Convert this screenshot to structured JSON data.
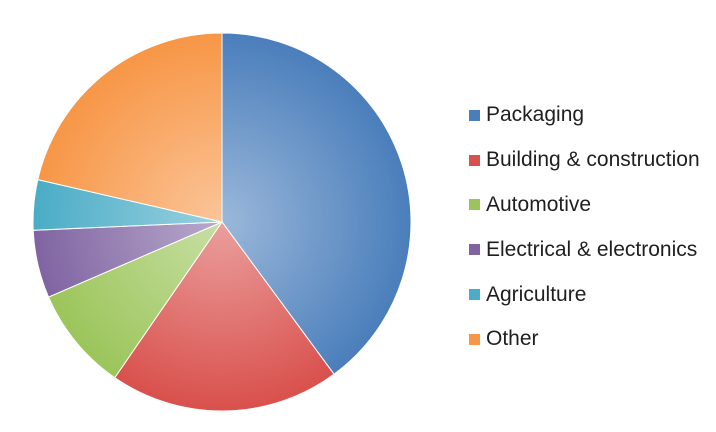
{
  "chart_data": {
    "type": "pie",
    "title": "",
    "categories": [
      "Packaging",
      "Building & construction",
      "Automotive",
      "Electrical & electronics",
      "Agriculture",
      "Other"
    ],
    "values": [
      39.9,
      19.7,
      8.9,
      5.8,
      4.3,
      21.4
    ],
    "colors": [
      "#4a7ebb",
      "#d9504c",
      "#9bc55a",
      "#8064a2",
      "#4aacc6",
      "#f79646"
    ],
    "start_angle_deg": 0,
    "direction": "clockwise",
    "legend_position": "right"
  }
}
